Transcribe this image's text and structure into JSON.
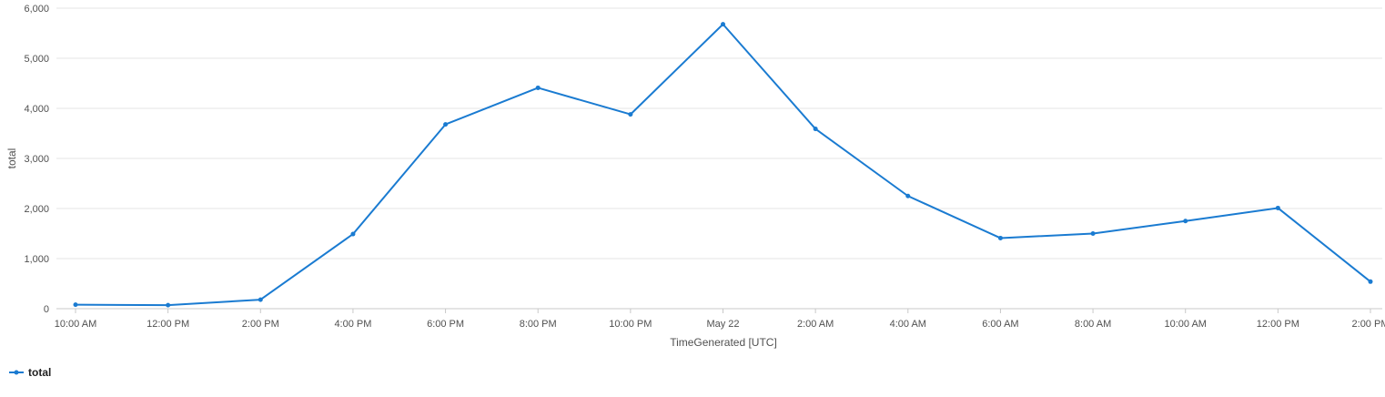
{
  "chart_data": {
    "type": "line",
    "xlabel": "TimeGenerated [UTC]",
    "ylabel": "total",
    "ylim": [
      0,
      6000
    ],
    "yticks": [
      0,
      1000,
      2000,
      3000,
      4000,
      5000,
      6000
    ],
    "ytick_labels": [
      "0",
      "1,000",
      "2,000",
      "3,000",
      "4,000",
      "5,000",
      "6,000"
    ],
    "x": [
      "10:00 AM",
      "12:00 PM",
      "2:00 PM",
      "4:00 PM",
      "6:00 PM",
      "8:00 PM",
      "10:00 PM",
      "May 22",
      "2:00 AM",
      "4:00 AM",
      "6:00 AM",
      "8:00 AM",
      "10:00 AM",
      "12:00 PM",
      "2:00 PM"
    ],
    "series": [
      {
        "name": "total",
        "color": "#1a7bd1",
        "values": [
          80,
          70,
          180,
          1490,
          3680,
          4410,
          3880,
          5680,
          3590,
          2250,
          1410,
          1500,
          1750,
          2010,
          540
        ]
      }
    ],
    "grid": true,
    "legend": "bottom-left"
  }
}
